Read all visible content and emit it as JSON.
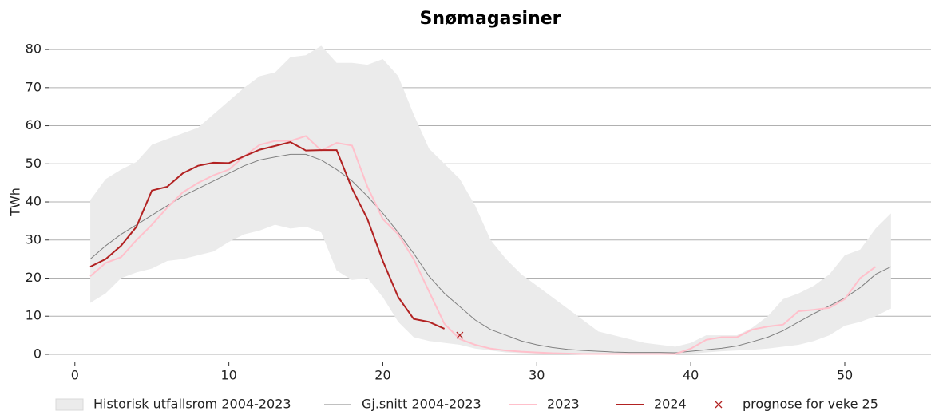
{
  "chart_data": {
    "type": "line",
    "title": "Snømagasiner",
    "y_label": "TWh",
    "x": [
      1,
      2,
      3,
      4,
      5,
      6,
      7,
      8,
      9,
      10,
      11,
      12,
      13,
      14,
      15,
      16,
      17,
      18,
      19,
      20,
      21,
      22,
      23,
      24,
      25,
      26,
      27,
      28,
      29,
      30,
      31,
      32,
      33,
      34,
      35,
      36,
      37,
      38,
      39,
      40,
      41,
      42,
      43,
      44,
      45,
      46,
      47,
      48,
      49,
      50,
      51,
      52,
      53
    ],
    "series": [
      {
        "name": "Historisk utfallsrom 2004-2023",
        "type": "band",
        "color": "#ebebeb",
        "lower": [
          13.5,
          16,
          20,
          21.5,
          22.5,
          24.5,
          25,
          26,
          27,
          29.5,
          31.5,
          32.5,
          34,
          33,
          33.5,
          32,
          22,
          19.5,
          20,
          15,
          8.5,
          4.5,
          3.5,
          3,
          2.5,
          1.5,
          1,
          0.5,
          0.3,
          0.2,
          0.1,
          0,
          0,
          0,
          0,
          0,
          0,
          0,
          0,
          0.2,
          0.5,
          0.8,
          1,
          1.2,
          1.5,
          2,
          2.5,
          3.5,
          5,
          7.5,
          8.5,
          10,
          12
        ],
        "upper": [
          40.5,
          46,
          48.5,
          50.5,
          55,
          56.5,
          58,
          59.5,
          63,
          66.5,
          70,
          73,
          74,
          78,
          78.5,
          81,
          76.5,
          76.5,
          76,
          77.5,
          73,
          63,
          54,
          50,
          46,
          39,
          30,
          25,
          21,
          18,
          15,
          12,
          9,
          6,
          5,
          4,
          3,
          2.5,
          2,
          3,
          5,
          5,
          5,
          7,
          10,
          14.5,
          16,
          18,
          21,
          26,
          27.5,
          33,
          37
        ]
      },
      {
        "name": "Gj.snitt 2004-2023",
        "color": "#808080",
        "values": [
          25,
          28.5,
          31.5,
          34,
          36.5,
          39,
          41.5,
          43.5,
          45.5,
          47.5,
          49.5,
          51,
          51.8,
          52.5,
          52.5,
          51,
          48.5,
          45.5,
          41.5,
          37,
          32,
          26.5,
          20.5,
          16,
          12.5,
          9,
          6.5,
          5,
          3.5,
          2.5,
          1.8,
          1.3,
          1,
          0.8,
          0.6,
          0.5,
          0.5,
          0.5,
          0.4,
          0.8,
          1.2,
          1.6,
          2.2,
          3.3,
          4.5,
          6.2,
          8.5,
          10.7,
          12.7,
          14.8,
          17.5,
          21,
          23
        ]
      },
      {
        "name": "2023",
        "color": "#ffc0cb",
        "values": [
          20.5,
          24,
          25.5,
          30,
          34,
          38.5,
          42.5,
          45,
          47,
          48.5,
          52,
          55,
          56,
          56,
          57.3,
          53.5,
          55.5,
          54.8,
          44,
          35.5,
          31.5,
          25,
          16.5,
          8,
          4,
          2.5,
          1.5,
          1,
          0.7,
          0.5,
          0.3,
          0.2,
          0.1,
          0.1,
          0.1,
          0.1,
          0.1,
          0.1,
          0.1,
          1.5,
          3.8,
          4.5,
          4.5,
          6.5,
          7.3,
          7.8,
          11.3,
          11.7,
          12.2,
          14.5,
          20,
          23,
          null
        ]
      },
      {
        "name": "2024",
        "color": "#b22222",
        "values": [
          23,
          25,
          28.5,
          33.5,
          43,
          44,
          47.5,
          49.5,
          50.3,
          50.2,
          52,
          53.7,
          54.7,
          55.7,
          53.5,
          53.6,
          53.6,
          43.5,
          35.5,
          24.5,
          15,
          9.3,
          8.5,
          6.7,
          null,
          null,
          null,
          null,
          null,
          null,
          null,
          null,
          null,
          null,
          null,
          null,
          null,
          null,
          null,
          null,
          null,
          null,
          null,
          null,
          null,
          null,
          null,
          null,
          null,
          null,
          null,
          null,
          null
        ]
      },
      {
        "name": "prognose for veke 25",
        "type": "scatter",
        "color": "#b22222",
        "x": [
          25
        ],
        "values": [
          5
        ]
      }
    ],
    "xlim": [
      -1.7,
      55.6
    ],
    "ylim": [
      -2,
      84
    ],
    "xticks": [
      0,
      10,
      20,
      30,
      40,
      50
    ],
    "yticks": [
      0,
      10,
      20,
      30,
      40,
      50,
      60,
      70,
      80
    ],
    "grid": true,
    "legend": "bottom"
  }
}
